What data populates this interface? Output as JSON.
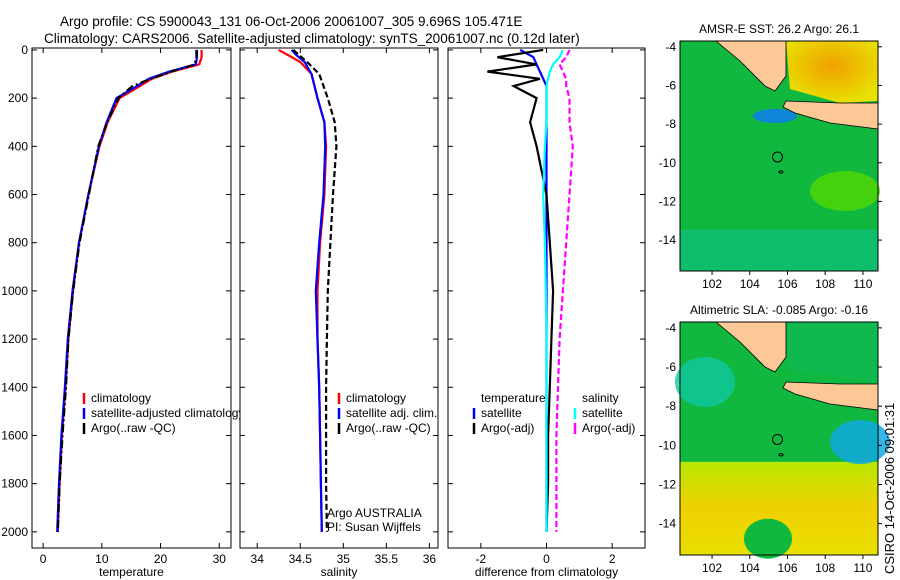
{
  "title_line1": "Argo profile: CS 5900043_131 06-Oct-2006 20061007_305 9.696S 105.471E",
  "title_line2": "Climatology: CARS2006. Satellite-adjusted climatology: synTS_20061007.nc (0.12d later)",
  "timestamp": "CSIRO 14-Oct-2006 09:01:31",
  "colors": {
    "climatology": "#ff0000",
    "satellite": "#0000ff",
    "argo": "#000000",
    "sal_satellite": "#00ffff",
    "sal_argo": "#ff00ff",
    "land": "#fcc896"
  },
  "chart_data": [
    {
      "type": "line",
      "name": "temperature",
      "xlabel": "temperature",
      "xlim": [
        -1.9,
        32
      ],
      "ylim": [
        -8,
        2067
      ],
      "xticks": [
        0,
        10,
        20,
        30
      ],
      "yticks": [
        0,
        200,
        400,
        600,
        800,
        1000,
        1200,
        1400,
        1600,
        1800,
        2000
      ],
      "depth": [
        0,
        30,
        60,
        90,
        120,
        150,
        200,
        300,
        400,
        600,
        800,
        1000,
        1200,
        1400,
        1600,
        1800,
        2000
      ],
      "series": [
        {
          "name": "climatology",
          "color": "#ff0000",
          "style": "solid",
          "values": [
            27,
            27,
            26.6,
            22,
            18.5,
            16.5,
            13,
            11,
            9.6,
            7.7,
            6.1,
            5.1,
            4.3,
            3.8,
            3.2,
            2.8,
            2.5
          ]
        },
        {
          "name": "satellite-adjusted climatology",
          "color": "#0000ff",
          "style": "solid",
          "values": [
            26.2,
            26.2,
            26,
            21.5,
            18,
            16,
            12.5,
            10.8,
            9.5,
            7.7,
            6.1,
            5,
            4.2,
            3.7,
            3.1,
            2.7,
            2.4
          ]
        },
        {
          "name": "Argo(..raw -QC)",
          "color": "#000000",
          "style": "dashdot",
          "values": [
            26.1,
            26.1,
            25.8,
            21.8,
            18.3,
            15.2,
            12.8,
            10.9,
            9.4,
            7.8,
            6.2,
            5.1,
            4.3,
            3.9,
            3.3,
            2.8,
            2.5
          ]
        }
      ],
      "legend": [
        "climatology",
        "satellite-adjusted climatology",
        "Argo(..raw -QC)"
      ]
    },
    {
      "type": "line",
      "name": "salinity",
      "xlabel": "salinity",
      "xlim": [
        33.8,
        36.1
      ],
      "ylim": [
        -8,
        2067
      ],
      "xticks": [
        34,
        34.5,
        35,
        35.5,
        36
      ],
      "depth": [
        0,
        20,
        50,
        100,
        200,
        300,
        400,
        600,
        800,
        1000,
        1200,
        1400,
        1600,
        1800,
        2000
      ],
      "series": [
        {
          "name": "climatology",
          "color": "#ff0000",
          "style": "solid",
          "values": [
            34.25,
            34.35,
            34.5,
            34.63,
            34.7,
            34.78,
            34.8,
            34.78,
            34.73,
            34.7,
            34.7,
            34.72,
            34.73,
            34.74,
            34.75
          ]
        },
        {
          "name": "satellite adj. clim.",
          "color": "#0000ff",
          "style": "solid",
          "values": [
            34.4,
            34.45,
            34.55,
            34.63,
            34.7,
            34.78,
            34.79,
            34.77,
            34.72,
            34.68,
            34.7,
            34.72,
            34.73,
            34.74,
            34.75
          ]
        },
        {
          "name": "Argo(..raw -QC)",
          "color": "#000000",
          "style": "dashed",
          "values": [
            34.42,
            34.48,
            34.58,
            34.72,
            34.82,
            34.9,
            34.92,
            34.88,
            34.85,
            34.82,
            34.81,
            34.8,
            34.8,
            34.8,
            34.81
          ]
        }
      ],
      "legend": [
        "climatology",
        "satellite adj. clim.",
        "Argo(..raw -QC)"
      ],
      "annotation": [
        "Argo AUSTRALIA",
        "PI: Susan Wijffels"
      ]
    },
    {
      "type": "line",
      "name": "difference",
      "xlabel": "difference from climatology",
      "xlim": [
        -3,
        3
      ],
      "ylim": [
        -8,
        2067
      ],
      "xticks": [
        -2,
        0,
        2
      ],
      "depth": [
        0,
        30,
        60,
        90,
        120,
        150,
        200,
        300,
        400,
        600,
        800,
        1000,
        1200,
        1400,
        1600,
        1800,
        2000
      ],
      "series": [
        {
          "name": "temperature satellite",
          "color": "#0000ff",
          "style": "solid",
          "values": [
            -0.8,
            -0.4,
            -0.3,
            -0.2,
            -0.1,
            0,
            0,
            0,
            0,
            0,
            0,
            0,
            0,
            0,
            0,
            0,
            0
          ]
        },
        {
          "name": "temperature Argo(-adj)",
          "color": "#000000",
          "style": "solid",
          "values": [
            -0.1,
            -1.5,
            -0.3,
            -1.8,
            -0.2,
            -1,
            -0.3,
            -0.5,
            -0.3,
            0,
            0.1,
            0.2,
            0.15,
            0.1,
            0.05,
            0.05,
            0
          ]
        },
        {
          "name": "salinity satellite",
          "color": "#00ffff",
          "style": "solid",
          "values": [
            0.5,
            0.4,
            0.2,
            0.1,
            0.05,
            0,
            0,
            0,
            -0.05,
            -0.1,
            -0.05,
            -0.02,
            0,
            0,
            0,
            0,
            0
          ]
        },
        {
          "name": "salinity Argo(-adj)",
          "color": "#ff00ff",
          "style": "dashed",
          "values": [
            0.7,
            0.6,
            0.4,
            0.5,
            0.6,
            0.6,
            0.7,
            0.7,
            0.8,
            0.7,
            0.6,
            0.5,
            0.4,
            0.35,
            0.3,
            0.3,
            0.3
          ]
        }
      ],
      "legend_temperature": {
        "title": "temperature",
        "items": [
          "satellite",
          "Argo(-adj)"
        ]
      },
      "legend_salinity": {
        "title": "salinity",
        "items": [
          "satellite",
          "Argo(-adj)"
        ]
      }
    }
  ],
  "maps": [
    {
      "title": "AMSR-E SST: 26.2 Argo: 26.1",
      "yticks": [
        -4,
        -6,
        -8,
        -10,
        -12,
        -14
      ],
      "xticks": [
        102,
        104,
        106,
        108,
        110
      ],
      "lonlim": [
        100.3,
        110.8
      ],
      "latlim": [
        -15.6,
        -3.7
      ],
      "argo_lon": 105.47,
      "argo_lat": -9.7
    },
    {
      "title": "Altimetric SLA: -0.085 Argo: -0.16",
      "yticks": [
        -4,
        -6,
        -8,
        -10,
        -12,
        -14
      ],
      "xticks": [
        102,
        104,
        106,
        108,
        110
      ],
      "lonlim": [
        100.3,
        110.8
      ],
      "latlim": [
        -15.6,
        -3.7
      ],
      "argo_lon": 105.47,
      "argo_lat": -9.7
    }
  ]
}
